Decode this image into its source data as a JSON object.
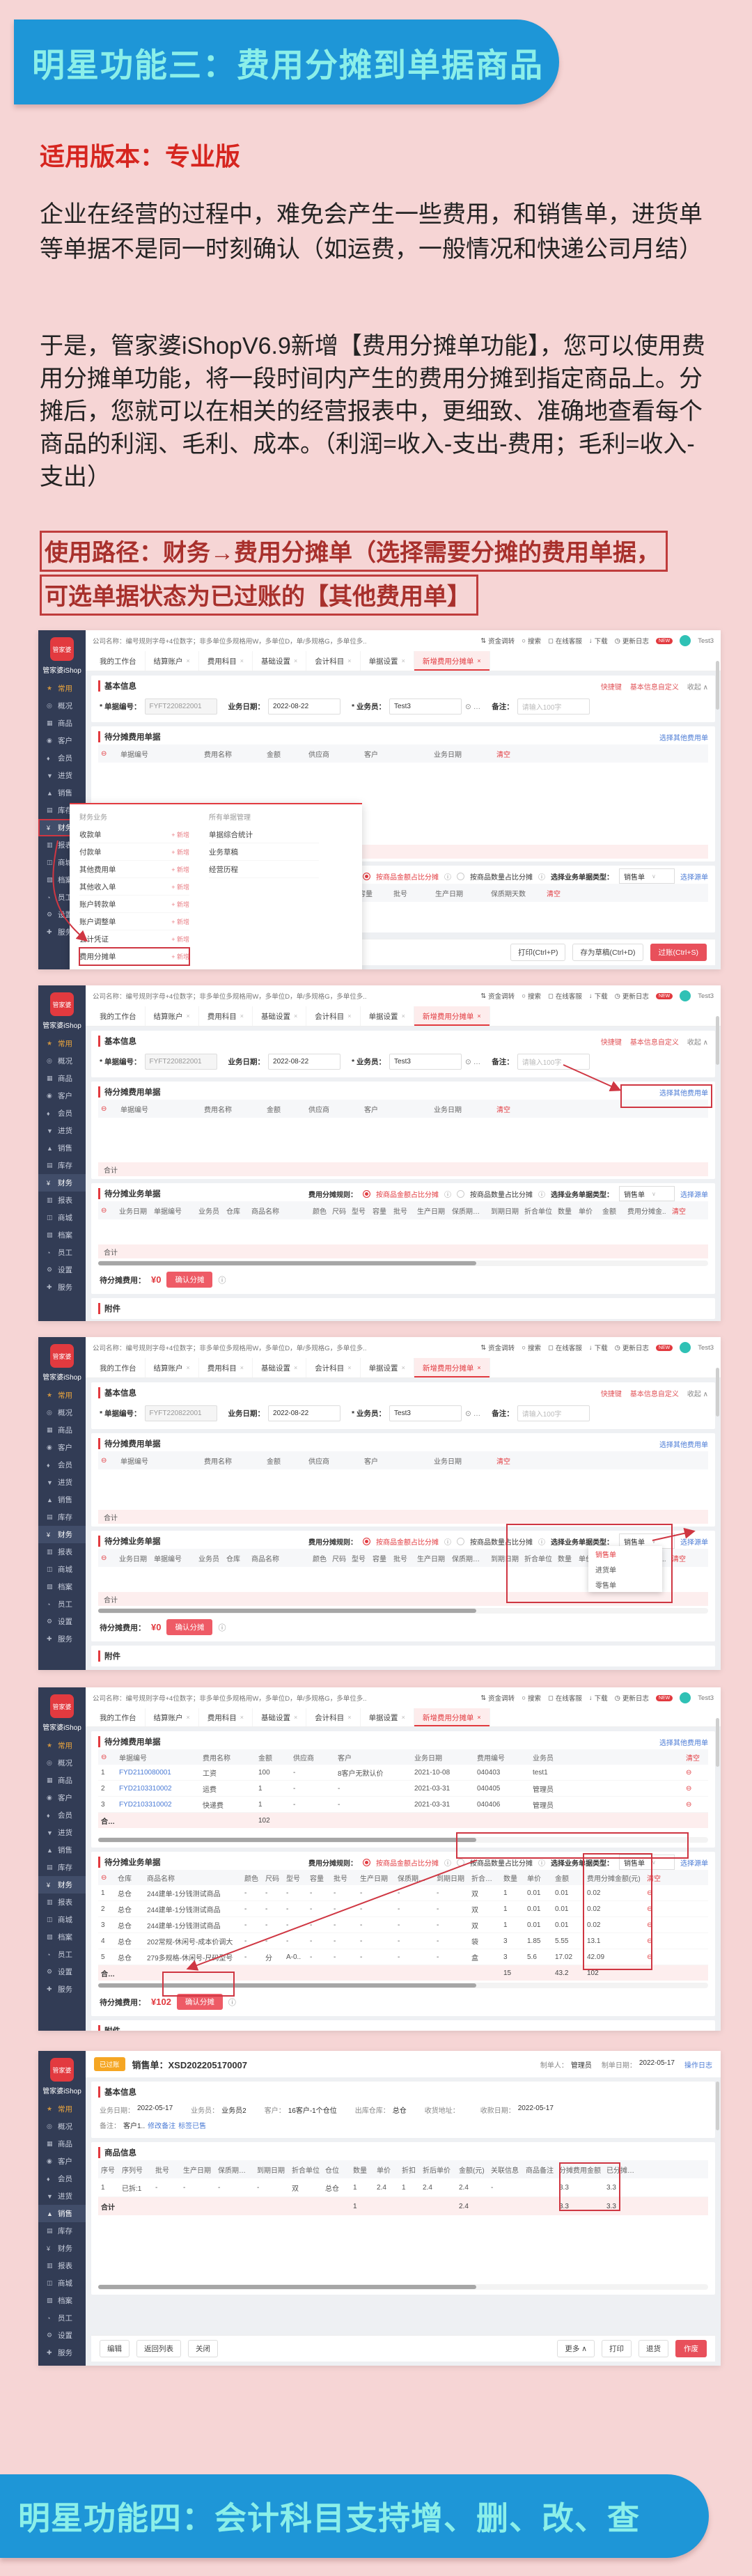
{
  "page": {
    "banner_top": "明星功能三：费用分摊到单据商品",
    "version": "适用版本：专业版",
    "para1": "企业在经营的过程中，难免会产生一些费用，和销售单，进货单等单据不是同一时刻确认（如运费，一般情况和快递公司月结）",
    "para2": "于是，管家婆iShopV6.9新增【费用分摊单功能】，您可以使用费用分摊单功能，将一段时间内产生的费用分摊到指定商品上。分摊后，您就可以在相关的经营报表中，更细致、准确地查看每个商品的利润、毛利、成本。（利润=收入-支出-费用；毛利=收入-支出）",
    "path1": "使用路径：财务→费用分摊单（选择需要分摊的费用单据，",
    "path2": "可选单据状态为已过账的【其他费用单】",
    "banner_bottom": "明星功能四：会计科目支持增、删、改、查"
  },
  "colors": {
    "banner_blue": "#1e96d7",
    "banner_text_cyan": "#8befe9",
    "page_pink": "#f6d5d5",
    "accent_red": "#e23a3f",
    "dark_red_text": "#a8302c",
    "link_blue": "#4b7bd5",
    "sidebar_navy": "#323c55",
    "badge_orange": "#f5a623"
  },
  "ui": {
    "logo": "管家婆",
    "brand": "管家婆iShop",
    "company_info": "公司名称：编号规则字母+4位数字；非多单位多规格用W，多单位D，单/多规格G，多单位多..",
    "topbar_actions": [
      {
        "icon": "⇅",
        "label": "资金调转"
      },
      {
        "icon": "○",
        "label": "搜索"
      },
      {
        "icon": "◻",
        "label": "在线客服"
      },
      {
        "icon": "↓",
        "label": "下载"
      },
      {
        "icon": "◷",
        "label": "更新日志"
      }
    ],
    "new_badge": "NEW",
    "user": "Test3",
    "tab_home": "我的工作台",
    "tabs_closable": [
      "结算账户",
      "费用科目",
      "基础设置",
      "会计科目",
      "单据设置"
    ],
    "tab_active": "新增费用分摊单",
    "close_x": "×",
    "sidebar": [
      {
        "icon": "★",
        "label": "常用"
      },
      {
        "icon": "◎",
        "label": "概况"
      },
      {
        "icon": "▦",
        "label": "商品"
      },
      {
        "icon": "◉",
        "label": "客户"
      },
      {
        "icon": "♦",
        "label": "会员"
      },
      {
        "icon": "▼",
        "label": "进货"
      },
      {
        "icon": "▲",
        "label": "销售"
      },
      {
        "icon": "▤",
        "label": "库存"
      },
      {
        "icon": "¥",
        "label": "财务"
      },
      {
        "icon": "▥",
        "label": "报表"
      },
      {
        "icon": "◫",
        "label": "商城"
      },
      {
        "icon": "▧",
        "label": "档案"
      },
      {
        "icon": "◔",
        "label": "员工"
      },
      {
        "icon": "⚙",
        "label": "设置"
      },
      {
        "icon": "✚",
        "label": "服务"
      }
    ],
    "sec_basic": "基本信息",
    "sec_fee": "待分摊费用单据",
    "sec_biz": "待分摊业务单据",
    "sec_attach": "附件",
    "sec_product": "商品信息",
    "link_shortcut": "快捷键",
    "link_custom": "基本信息自定义",
    "link_collapse": "收起 ∧",
    "link_choose_fee": "选择其他费用单",
    "link_choose_src": "选择源单",
    "f_docno_l": "* 单据编号：",
    "f_docno": "FYFT220822001",
    "f_date_l": "业务日期：",
    "f_date": "2022-08-22",
    "f_clerk_l": "* 业务员：",
    "f_clerk": "Test3",
    "f_more": "⊙ …",
    "f_remark_l": "备注：",
    "f_remark_ph": "请输入100字",
    "rule_l": "费用分摊规则：",
    "rule1": "按商品金额占比分摊",
    "rule2": "按商品数量占比分摊",
    "info": "ⓘ",
    "type_l": "选择业务单据类型：",
    "type_v": "销售单",
    "caret": "∨",
    "menu_c1": "财务业务",
    "menu_c2": "所有单据管理",
    "menu_add": "+ 新增",
    "menu_items1": [
      "收款单",
      "付款单",
      "其他费用单",
      "其他收入单",
      "账户转款单",
      "账户调整单",
      "会计凭证",
      "费用分摊单"
    ],
    "menu_items2": [
      "单据综合统计",
      "业务草稿",
      "经营历程"
    ],
    "dd_options": [
      "销售单",
      "进货单",
      "零售单"
    ],
    "total_l": "合计",
    "pending_l": "待分摊费用：",
    "pending_v0": "¥0",
    "pending_v102": "¥102",
    "confirm": "确认分摊",
    "btn_print": "打印(Ctrl+P)",
    "btn_draft": "存为草稿(Ctrl+D)",
    "btn_post": "过账(Ctrl+S)"
  },
  "tables": {
    "fee_empty": {
      "headers": [
        "⊖",
        "单据编号",
        "费用名称",
        "金额",
        "供应商",
        "客户",
        "业务日期",
        "清空"
      ],
      "rows": []
    },
    "biz_cols_s1": {
      "headers": [
        "仓库",
        "商品名称",
        "颜色",
        "尺码",
        "型号",
        "容量",
        "批号",
        "生产日期",
        "保质期天数",
        "清空"
      ],
      "rows": []
    },
    "biz_empty": {
      "headers": [
        "⊖",
        "业务日期",
        "单据编号",
        "业务员",
        "仓库",
        "商品名称",
        "颜色",
        "尺码",
        "型号",
        "容量",
        "批号",
        "生产日期",
        "保质期天数",
        "到期日期",
        "折合单位",
        "数量",
        "单价",
        "金额",
        "费用分摊金..",
        "清空"
      ],
      "rows": []
    },
    "fee_filled": {
      "headers": [
        "⊖",
        "单据编号",
        "费用名称",
        "金额",
        "供应商",
        "客户",
        "业务日期",
        "费用编号",
        "业务员",
        "",
        "清空"
      ],
      "rows": [
        [
          "1",
          "FYD2110080001",
          "工资",
          "100",
          "-",
          "8客户无默认价",
          "2021-10-08",
          "040403",
          "test1",
          "",
          "⊖"
        ],
        [
          "2",
          "FYD2103310002",
          "运费",
          "1",
          "-",
          "-",
          "2021-03-31",
          "040405",
          "管理员",
          "",
          "⊖"
        ],
        [
          "3",
          "FYD2103310002",
          "快递费",
          "1",
          "-",
          "-",
          "2021-03-31",
          "040406",
          "管理员",
          "",
          "⊖"
        ]
      ],
      "totals": [
        "合计",
        "",
        "",
        "102",
        "",
        "",
        "",
        "",
        "",
        "",
        ""
      ]
    },
    "biz_filled": {
      "headers": [
        "⊖",
        "仓库",
        "商品名称",
        "颜色",
        "尺码",
        "型号",
        "容量",
        "批号",
        "生产日期",
        "保质期天数",
        "到期日期",
        "折合单位",
        "数量",
        "单价",
        "金额",
        "费用分摊金额(元)",
        "清空"
      ],
      "rows": [
        [
          "1",
          "总仓",
          "244建单-1分钱测试商品",
          "-",
          "-",
          "-",
          "-",
          "-",
          "-",
          "-",
          "-",
          "双",
          "1",
          "0.01",
          "0.01",
          "0.02",
          "⊖"
        ],
        [
          "2",
          "总仓",
          "244建单-1分钱测试商品",
          "-",
          "-",
          "-",
          "-",
          "-",
          "-",
          "-",
          "-",
          "双",
          "1",
          "0.01",
          "0.01",
          "0.02",
          "⊖"
        ],
        [
          "3",
          "总仓",
          "244建单-1分钱测试商品",
          "-",
          "-",
          "-",
          "-",
          "-",
          "-",
          "-",
          "-",
          "双",
          "1",
          "0.01",
          "0.01",
          "0.02",
          "⊖"
        ],
        [
          "4",
          "总仓",
          "202常规-休闲号-成本价调大",
          "-",
          "-",
          "-",
          "-",
          "-",
          "-",
          "-",
          "-",
          "袋",
          "3",
          "1.85",
          "5.55",
          "13.1",
          "⊖"
        ],
        [
          "5",
          "总仓",
          "279多规格-休闲号-尺码型号",
          "-",
          "分",
          "A-0..",
          "-",
          "-",
          "-",
          "-",
          "-",
          "盒",
          "3",
          "5.6",
          "17.02",
          "42.09",
          "⊖"
        ]
      ],
      "totals": [
        "合计",
        "",
        "",
        "",
        "",
        "",
        "",
        "",
        "",
        "",
        "",
        "",
        "15",
        "",
        "43.2",
        "102",
        ""
      ]
    },
    "product": {
      "headers": [
        "序号",
        "序列号",
        "批号",
        "生产日期",
        "保质期天数",
        "到期日期",
        "折合单位",
        "仓位",
        "数量",
        "单价",
        "折扣",
        "折后单价",
        "金额(元)",
        "关联信息",
        "商品备注",
        "分摊费用金额",
        "已分摊费用"
      ],
      "rows": [
        [
          "1",
          "已拆:1",
          "-",
          "-",
          "-",
          "-",
          "双",
          "总仓",
          "1",
          "2.4",
          "1",
          "2.4",
          "2.4",
          "-",
          "",
          "3.3",
          "3.3"
        ]
      ],
      "totals": [
        "合计",
        "",
        "",
        "",
        "",
        "",
        "",
        "",
        "1",
        "",
        "",
        "",
        "2.4",
        "",
        "",
        "3.3",
        "3.3"
      ]
    }
  },
  "shot5": {
    "badge": "已过账",
    "title": "销售单：XSD202205170007",
    "maker_l": "制单人：",
    "maker": "管理员",
    "mdate_l": "制单日期：",
    "mdate": "2022-05-17",
    "oplog": "操作日志",
    "fields": [
      {
        "l": "业务日期：",
        "v": "2022-05-17",
        "blue": ""
      },
      {
        "l": "业务员：",
        "v": "业务员2",
        "blue": "bluetx"
      },
      {
        "l": "客户：",
        "v": "16客户-1个仓位",
        "blue": "bluetx"
      },
      {
        "l": "出库仓库：",
        "v": "总仓",
        "blue": "bluetx"
      },
      {
        "l": "收货地址：",
        "v": "",
        "blue": ""
      },
      {
        "l": "收款日期：",
        "v": "2022-05-17",
        "blue": ""
      }
    ],
    "remark_l": "备注：",
    "remark_v": "客户1..",
    "remark_link1": "修改备注",
    "remark_link2": "标签已售",
    "btn_edit": "编辑",
    "btn_back": "返回列表",
    "btn_close": "关闭",
    "btn_more": "更多 ∧",
    "btn_print": "打印",
    "btn_return": "退货",
    "btn_void": "作废"
  }
}
